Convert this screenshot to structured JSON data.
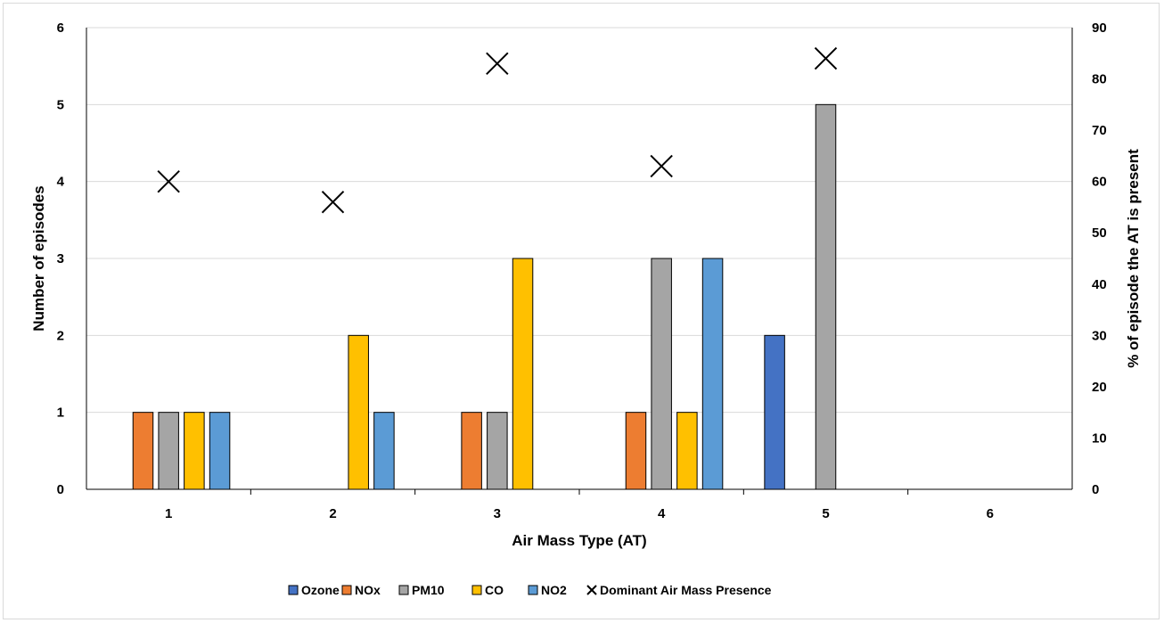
{
  "chart_data": {
    "type": "bar",
    "categories": [
      "1",
      "2",
      "3",
      "4",
      "5",
      "6"
    ],
    "xlabel": "Air Mass Type (AT)",
    "ylabel": "Number of episodes",
    "y2label": "% of episode the AT is present",
    "ylim": [
      0,
      6
    ],
    "y2lim": [
      0,
      90
    ],
    "yticks": [
      "0",
      "1",
      "2",
      "3",
      "4",
      "5",
      "6"
    ],
    "y2ticks": [
      "0",
      "10",
      "20",
      "30",
      "40",
      "50",
      "60",
      "70",
      "80",
      "90"
    ],
    "grid": true,
    "legend_position": "bottom",
    "series": [
      {
        "name": "Ozone",
        "color": "#4472c4",
        "values": [
          0,
          0,
          0,
          0,
          2,
          0
        ]
      },
      {
        "name": "NOx",
        "color": "#ed7d31",
        "values": [
          1,
          0,
          1,
          1,
          0,
          0
        ]
      },
      {
        "name": "PM10",
        "color": "#a5a5a5",
        "values": [
          1,
          0,
          1,
          3,
          5,
          0
        ]
      },
      {
        "name": "CO",
        "color": "#ffc000",
        "values": [
          1,
          2,
          3,
          1,
          0,
          0
        ]
      },
      {
        "name": "NO2",
        "color": "#5b9bd5",
        "values": [
          1,
          1,
          0,
          3,
          0,
          0
        ]
      }
    ],
    "secondary_series": {
      "name": "Dominant Air Mass Presence",
      "type": "scatter",
      "marker": "x",
      "axis": "right",
      "values": [
        60,
        56,
        83,
        63,
        84,
        null
      ]
    }
  }
}
